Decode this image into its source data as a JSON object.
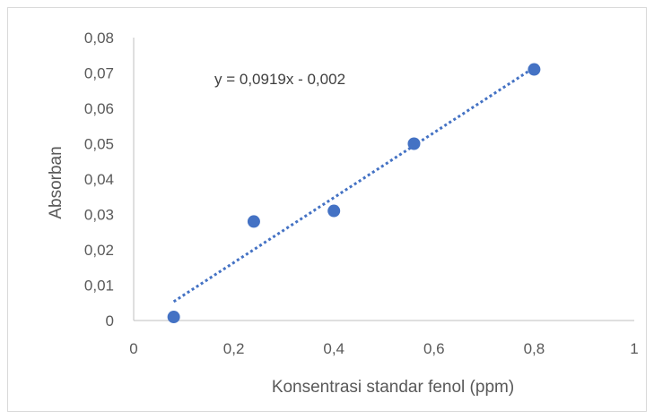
{
  "chart_data": {
    "type": "scatter",
    "title": "",
    "xlabel": "Konsentrasi standar fenol (ppm)",
    "ylabel": "Absorban",
    "xlim": [
      0,
      1
    ],
    "ylim": [
      0,
      0.08
    ],
    "x_ticks": [
      0,
      0.2,
      0.4,
      0.6,
      0.8,
      1
    ],
    "x_tick_labels": [
      "0",
      "0,2",
      "0,4",
      "0,6",
      "0,8",
      "1"
    ],
    "y_ticks": [
      0,
      0.01,
      0.02,
      0.03,
      0.04,
      0.05,
      0.06,
      0.07,
      0.08
    ],
    "y_tick_labels": [
      "0",
      "0,01",
      "0,02",
      "0,03",
      "0,04",
      "0,05",
      "0,06",
      "0,07",
      "0,08"
    ],
    "grid": false,
    "legend": "none",
    "series": [
      {
        "x": [
          0.08,
          0.24,
          0.4,
          0.56,
          0.8
        ],
        "y": [
          0.001,
          0.028,
          0.031,
          0.05,
          0.071
        ],
        "color": "#4472c4"
      }
    ],
    "trendline": {
      "type": "linear",
      "slope": 0.0919,
      "intercept": -0.002,
      "x_range": [
        0.08,
        0.8
      ],
      "style": "dotted",
      "color": "#4472c4",
      "equation": "y = 0,0919x - 0,002"
    }
  }
}
